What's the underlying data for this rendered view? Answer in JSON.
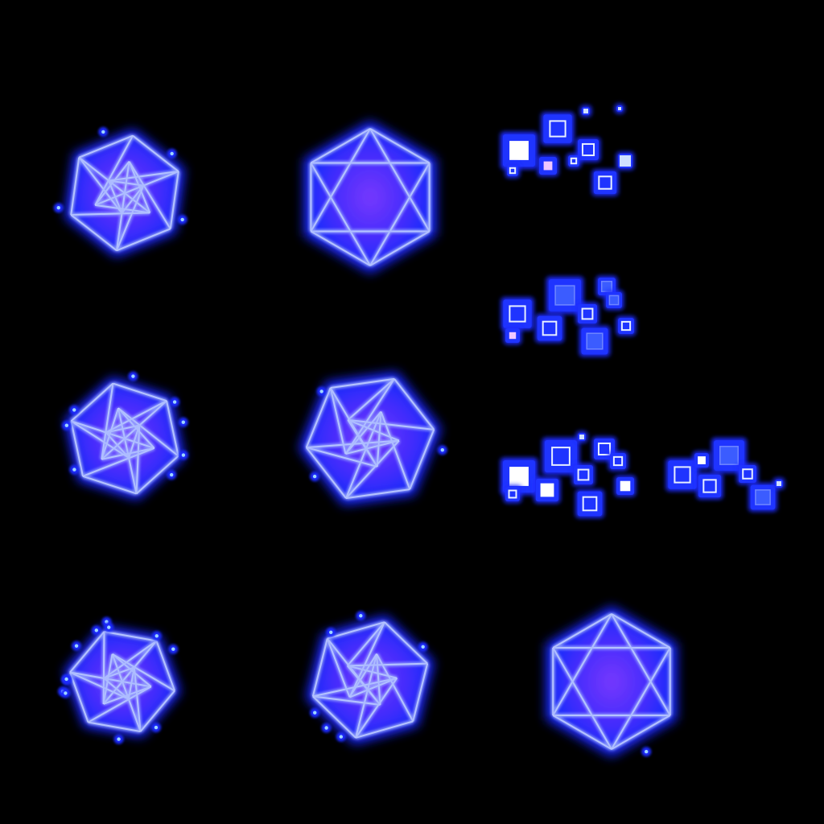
{
  "sheet": {
    "background": "#000000",
    "glow_color": "#1a2cff",
    "core_color": "#8a3cff",
    "line_color": "#e8f0ff"
  },
  "sprites": [
    {
      "id": "crystal-frame-1",
      "kind": "crystal",
      "icon": "icosahedron-icon",
      "sparkles": 4
    },
    {
      "id": "crystal-frame-2",
      "kind": "crystal",
      "icon": "icosahedron-icon",
      "sparkles": 0
    },
    {
      "id": "cube-burst-1",
      "kind": "cubes",
      "icon": "cube-particles-icon"
    },
    {
      "id": "cube-burst-2",
      "kind": "cubes",
      "icon": "cube-particles-icon"
    },
    {
      "id": "crystal-frame-3",
      "kind": "crystal",
      "icon": "icosahedron-icon",
      "sparkles": 8
    },
    {
      "id": "crystal-frame-4",
      "kind": "crystal",
      "icon": "icosahedron-icon",
      "sparkles": 3
    },
    {
      "id": "cube-burst-3",
      "kind": "cubes",
      "icon": "cube-particles-icon"
    },
    {
      "id": "cube-burst-4",
      "kind": "cubes",
      "icon": "cube-particles-icon"
    },
    {
      "id": "crystal-frame-5",
      "kind": "crystal",
      "icon": "icosahedron-icon",
      "sparkles": 12
    },
    {
      "id": "crystal-frame-6",
      "kind": "crystal",
      "icon": "icosahedron-icon",
      "sparkles": 6
    },
    {
      "id": "crystal-frame-7",
      "kind": "crystal",
      "icon": "icosahedron-icon",
      "sparkles": 1
    }
  ]
}
